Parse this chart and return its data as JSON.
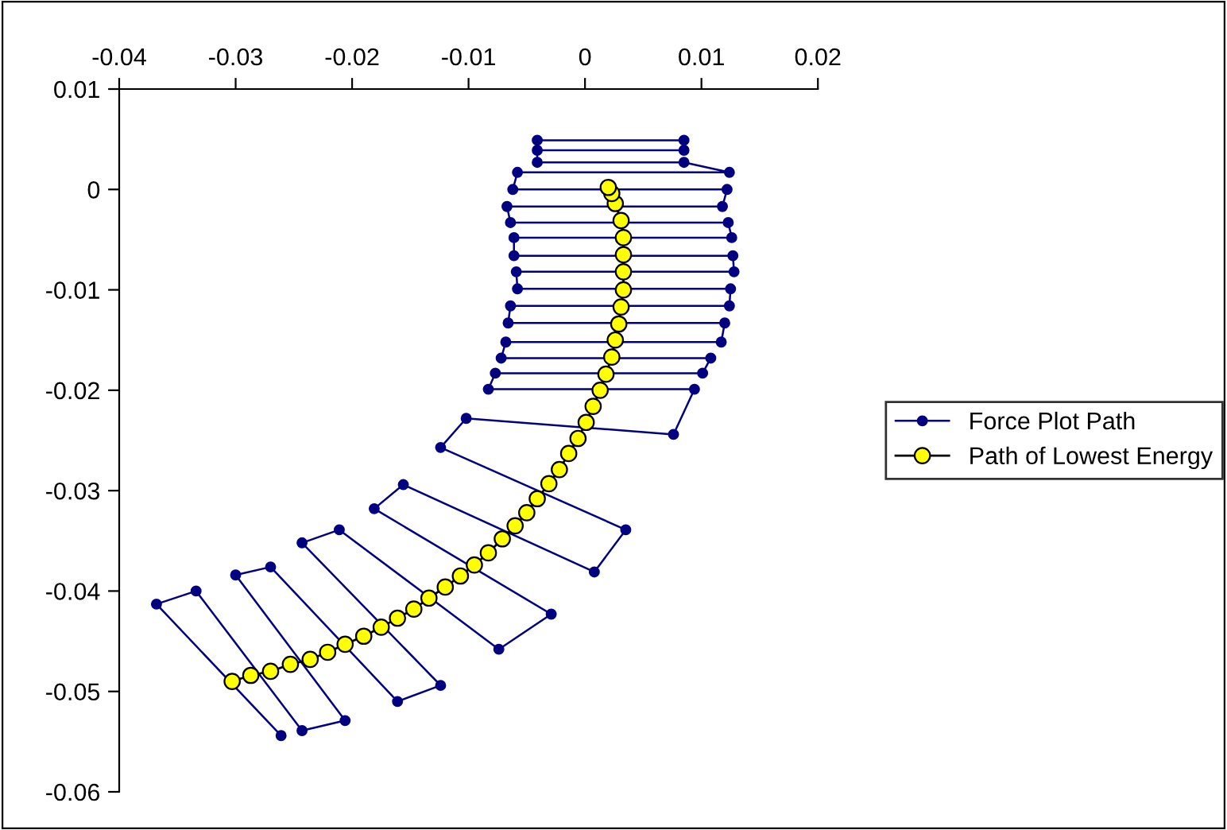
{
  "chart_data": {
    "type": "line",
    "xlim": [
      -0.04,
      0.02
    ],
    "xticks": [
      -0.04,
      -0.03,
      -0.02,
      -0.01,
      0,
      0.01,
      0.02
    ],
    "ylim": [
      -0.06,
      0.01
    ],
    "yticks": [
      -0.06,
      -0.05,
      -0.04,
      -0.03,
      -0.02,
      -0.01,
      0,
      0.01
    ],
    "grid": false,
    "legend": "right",
    "marker": "circle",
    "line_style": "solid",
    "series": [
      {
        "name": "Force Plot Path",
        "color": "#000080",
        "x": [
          -0.0041,
          0.0085,
          0.0085,
          -0.0041,
          -0.0041,
          0.0085,
          0.0124,
          -0.0058,
          -0.0062,
          0.0122,
          0.0118,
          -0.0067,
          -0.0064,
          0.0123,
          0.0126,
          -0.0061,
          -0.0061,
          0.0127,
          0.0128,
          -0.0059,
          -0.0058,
          0.0125,
          0.0124,
          -0.0064,
          -0.0066,
          0.012,
          0.0117,
          -0.0068,
          -0.0072,
          0.0108,
          0.0101,
          -0.0077,
          -0.0083,
          0.0094,
          0.0076,
          -0.0102,
          -0.0124,
          0.0035,
          0.0008,
          -0.0156,
          -0.0181,
          -0.0029,
          -0.0074,
          -0.0211,
          -0.0243,
          -0.0124,
          -0.0161,
          -0.027,
          -0.03,
          -0.0206,
          -0.0243,
          -0.0334,
          -0.0368,
          -0.0261
        ],
        "values": [
          0.0049,
          0.0049,
          0.0039,
          0.0039,
          0.0027,
          0.0027,
          0.0017,
          0.0017,
          0.0,
          0.0,
          -0.0017,
          -0.0017,
          -0.0033,
          -0.0033,
          -0.0048,
          -0.0048,
          -0.0066,
          -0.0066,
          -0.0082,
          -0.0082,
          -0.0099,
          -0.0099,
          -0.0116,
          -0.0116,
          -0.0133,
          -0.0133,
          -0.0152,
          -0.0152,
          -0.0168,
          -0.0168,
          -0.0183,
          -0.0183,
          -0.0199,
          -0.0199,
          -0.0244,
          -0.0228,
          -0.0257,
          -0.0339,
          -0.0381,
          -0.0294,
          -0.0318,
          -0.0423,
          -0.0458,
          -0.0339,
          -0.0352,
          -0.0494,
          -0.051,
          -0.0376,
          -0.0384,
          -0.0529,
          -0.0539,
          -0.04,
          -0.0413,
          -0.0544
        ]
      },
      {
        "name": "Path of Lowest Energy",
        "color": "#ffff00",
        "x": [
          -0.0303,
          -0.0287,
          -0.027,
          -0.0253,
          -0.0236,
          -0.0221,
          -0.0206,
          -0.019,
          -0.0175,
          -0.0161,
          -0.0147,
          -0.0134,
          -0.012,
          -0.0107,
          -0.0095,
          -0.0083,
          -0.0071,
          -0.006,
          -0.005,
          -0.0041,
          -0.0031,
          -0.0022,
          -0.0014,
          -0.0006,
          0.0001,
          0.0007,
          0.0013,
          0.0018,
          0.0023,
          0.0026,
          0.0029,
          0.0031,
          0.0033,
          0.0033,
          0.0033,
          0.0033,
          0.0031,
          0.0026,
          0.0023,
          0.002
        ],
        "values": [
          -0.049,
          -0.0484,
          -0.048,
          -0.0473,
          -0.0468,
          -0.0461,
          -0.0453,
          -0.0445,
          -0.0436,
          -0.0427,
          -0.0418,
          -0.0407,
          -0.0396,
          -0.0385,
          -0.0374,
          -0.0362,
          -0.0348,
          -0.0335,
          -0.0322,
          -0.0308,
          -0.0293,
          -0.0279,
          -0.0263,
          -0.0248,
          -0.0232,
          -0.0216,
          -0.02,
          -0.0184,
          -0.0167,
          -0.015,
          -0.0134,
          -0.0117,
          -0.01,
          -0.0082,
          -0.0065,
          -0.0048,
          -0.0031,
          -0.0014,
          -0.0004,
          0.0002
        ]
      }
    ]
  }
}
